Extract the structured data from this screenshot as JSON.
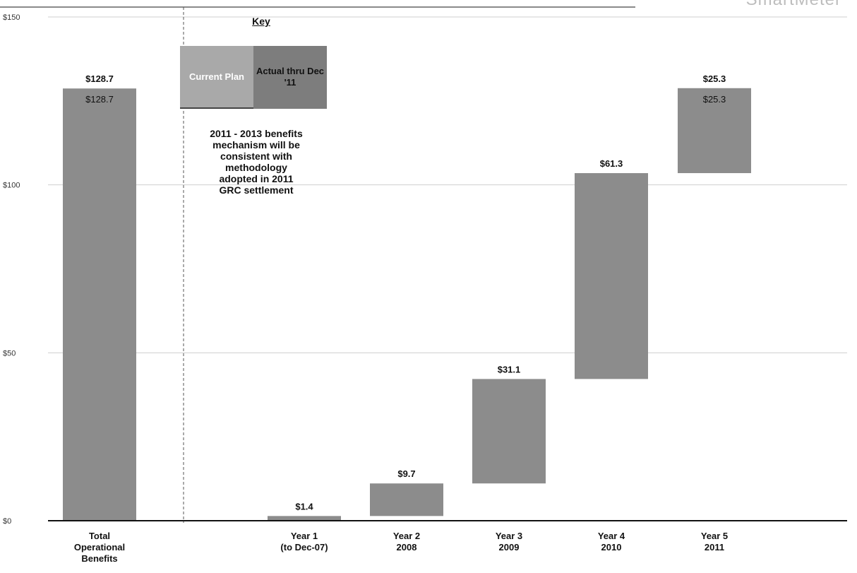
{
  "brand": "SmartMeter",
  "key": {
    "title": "Key",
    "current_plan_label": "Current Plan",
    "actual_label": "Actual thru Dec '11"
  },
  "note": "2011 - 2013 benefits\nmechanism will be\nconsistent with\nmethodology\nadopted in 2011\nGRC settlement",
  "colors": {
    "bar": "#8c8c8c",
    "current_plan": "#a9a9a9",
    "actual": "#7d7d7d",
    "grid": "#cfcfcf",
    "axis": "#111111"
  },
  "chart_data": {
    "type": "bar",
    "subtype": "waterfall",
    "title": "",
    "xlabel": "",
    "ylabel": "",
    "ylim": [
      0,
      150
    ],
    "yticks": [
      0,
      50,
      100,
      150
    ],
    "ytick_labels": [
      "$0",
      "$50",
      "$100",
      "$150"
    ],
    "grid": true,
    "categories": [
      [
        "Total",
        "Operational",
        "Benefits"
      ],
      [
        "Year 1",
        "(to Dec-07)"
      ],
      [
        "Year 2",
        "2008"
      ],
      [
        "Year  3",
        "2009"
      ],
      [
        "Year  4",
        "2010"
      ],
      [
        "Year 5",
        "2011"
      ]
    ],
    "bars": [
      {
        "start": 0,
        "end": 128.7,
        "label": "$128.7",
        "inner_label": "$128.7"
      },
      {
        "start": 0,
        "end": 1.4,
        "label": "$1.4",
        "inner_label": ""
      },
      {
        "start": 1.4,
        "end": 11.1,
        "label": "$9.7",
        "inner_label": ""
      },
      {
        "start": 11.1,
        "end": 42.2,
        "label": "$31.1",
        "inner_label": ""
      },
      {
        "start": 42.2,
        "end": 103.5,
        "label": "$61.3",
        "inner_label": ""
      },
      {
        "start": 103.5,
        "end": 128.8,
        "label": "$25.3",
        "inner_label": "$25.3"
      }
    ]
  }
}
